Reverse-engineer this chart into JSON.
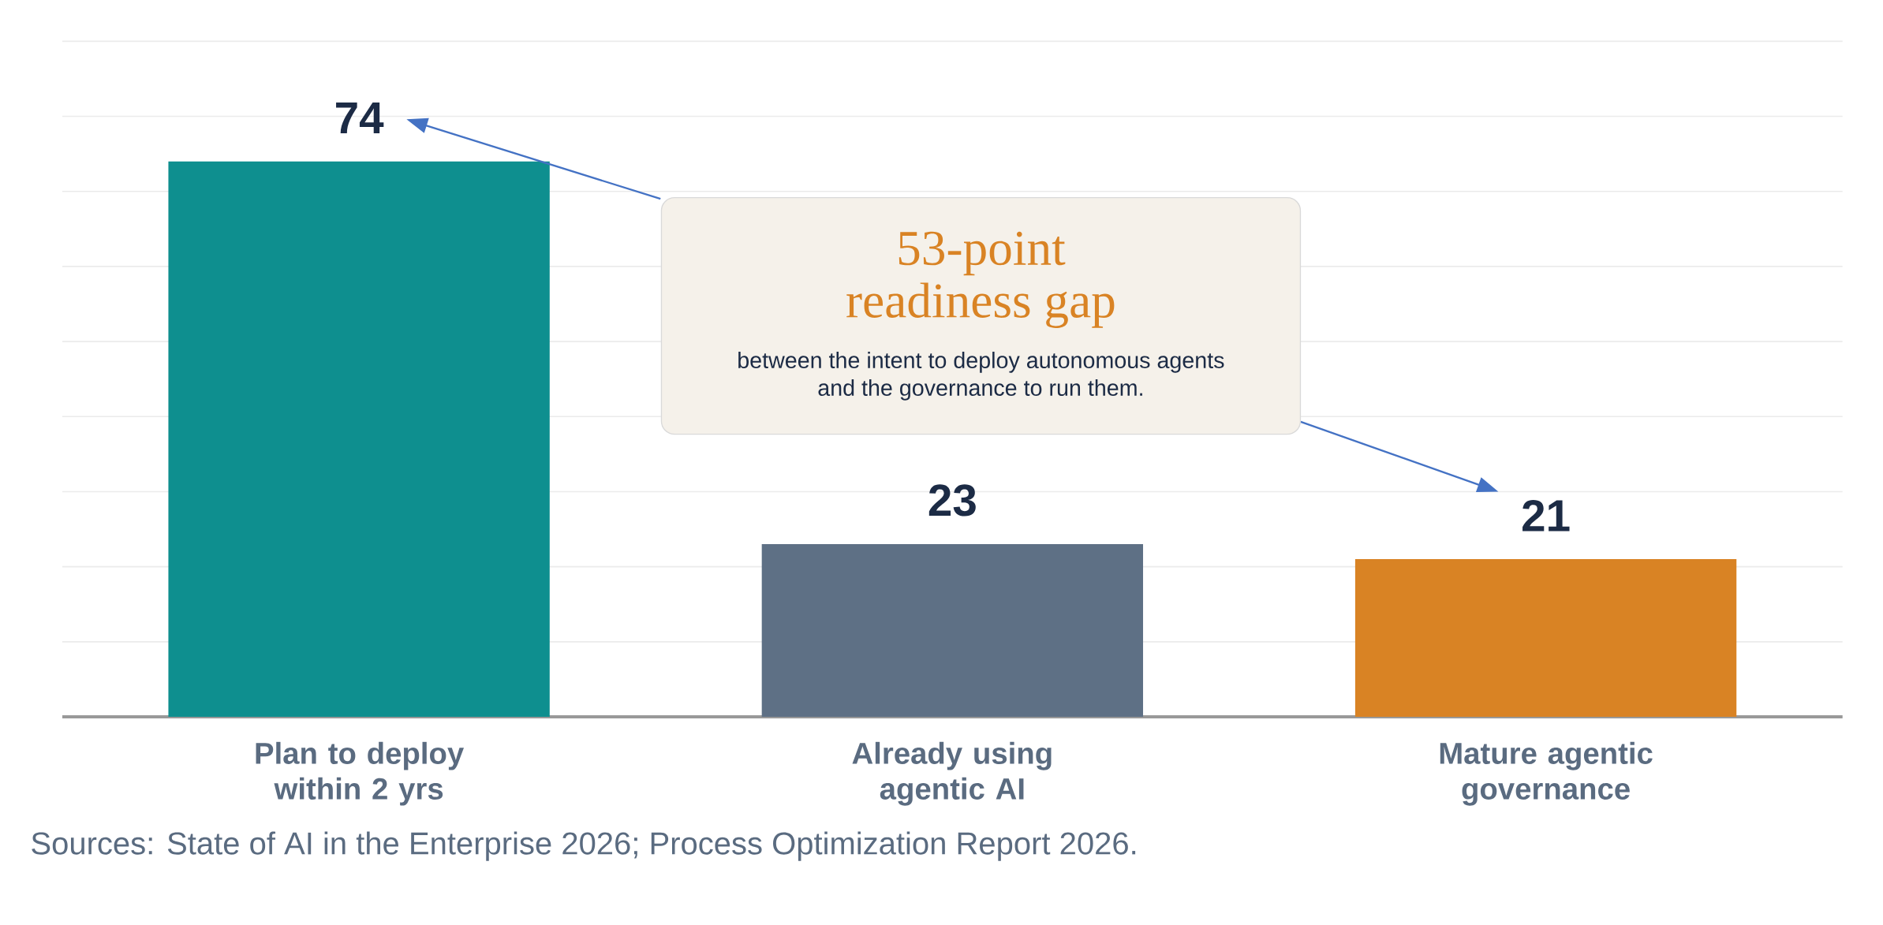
{
  "chart_data": {
    "type": "bar",
    "categories": [
      "Plan to deploy within 2 yrs",
      "Already using agentic AI",
      "Mature agentic governance"
    ],
    "values": [
      74,
      23,
      21
    ],
    "colors": [
      "#0e8f8f",
      "#5e7085",
      "#d98324"
    ],
    "ylim": [
      0,
      90
    ],
    "yticks": [
      {
        "value": 0,
        "label": null
      },
      {
        "value": 10,
        "label": null
      },
      {
        "value": 20,
        "label": null
      },
      {
        "value": 30,
        "label": null
      },
      {
        "value": 40,
        "label": null
      },
      {
        "value": 50,
        "label": null
      },
      {
        "value": 60,
        "label": null
      },
      {
        "value": 70,
        "label": null
      },
      {
        "value": 80,
        "label": null
      },
      {
        "value": 90,
        "label": null
      }
    ],
    "tick_labels": "x",
    "grid": "y",
    "data_labels": true,
    "annotations": [
      "53-point readiness gap",
      "between the intent to deploy autonomous agents and the governance to run them.",
      "Sources: State of AI in the Enterprise 2026; Process Optimization Report 2026."
    ]
  }
}
